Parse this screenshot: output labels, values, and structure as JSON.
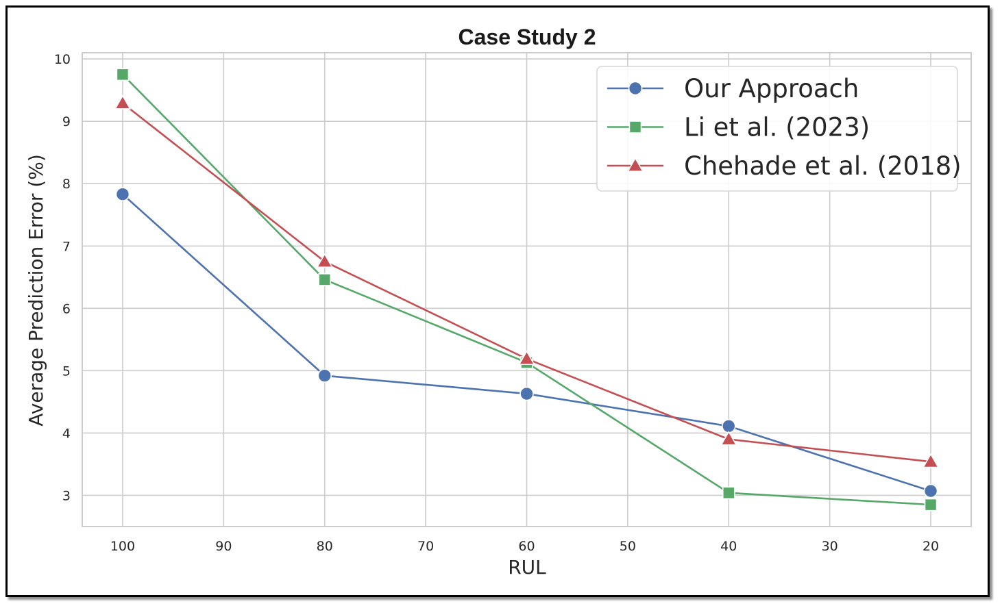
{
  "chart_data": {
    "type": "line",
    "title": "Case Study 2",
    "xlabel": "RUL",
    "ylabel": "Average Prediction Error (%)",
    "x": [
      100,
      80,
      60,
      40,
      20
    ],
    "xlim": [
      104,
      16
    ],
    "ylim": [
      2.5,
      10.1
    ],
    "xticks": [
      100,
      90,
      80,
      70,
      60,
      50,
      40,
      30,
      20
    ],
    "yticks": [
      3,
      4,
      5,
      6,
      7,
      8,
      9,
      10
    ],
    "grid": true,
    "legend_position": "top-right",
    "series": [
      {
        "name": "Our Approach",
        "color": "#4c72b0",
        "marker": "circle",
        "values": [
          7.83,
          4.92,
          4.63,
          4.11,
          3.07
        ]
      },
      {
        "name": "Li et al. (2023)",
        "color": "#55a868",
        "marker": "square",
        "values": [
          9.75,
          6.46,
          5.13,
          3.04,
          2.85
        ]
      },
      {
        "name": "Chehade et al. (2018)",
        "color": "#c44e52",
        "marker": "triangle",
        "values": [
          9.29,
          6.75,
          5.19,
          3.9,
          3.54
        ]
      }
    ]
  }
}
